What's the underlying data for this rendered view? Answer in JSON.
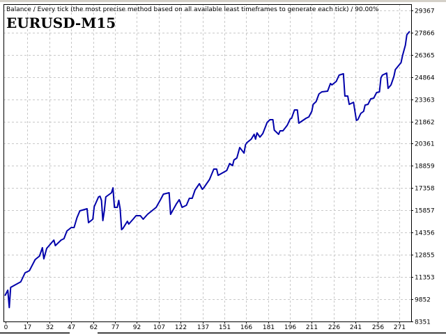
{
  "chart_data": {
    "type": "line",
    "subtitle": "Balance / Every tick (the most precise method based on all available least timeframes to generate each tick) / 90.00%",
    "title": "EURUSD-M15",
    "xlabel": "",
    "ylabel": "",
    "grid": true,
    "xlim": [
      -1,
      282
    ],
    "ylim": [
      8351,
      29783
    ],
    "x_ticks": [
      0,
      17,
      32,
      47,
      62,
      77,
      92,
      107,
      122,
      137,
      151,
      166,
      181,
      196,
      211,
      226,
      241,
      256,
      271
    ],
    "y_ticks": [
      29367,
      27866,
      26365,
      24864,
      23363,
      21862,
      20361,
      18859,
      17358,
      15857,
      14356,
      12855,
      11353,
      9852,
      8351
    ],
    "series": [
      {
        "name": "Balance",
        "color": "#0000aa",
        "x": [
          0,
          2,
          3,
          4,
          11,
          14,
          17,
          21,
          24,
          26,
          27,
          29,
          34,
          35,
          39,
          41,
          43,
          46,
          48,
          50,
          52,
          57,
          58,
          61,
          62,
          65,
          66,
          67,
          68,
          69,
          70,
          72,
          74,
          75,
          76,
          78,
          79,
          80,
          81,
          82,
          85,
          86,
          89,
          91,
          94,
          96,
          99,
          105,
          108,
          110,
          114,
          115,
          119,
          121,
          123,
          126,
          128,
          130,
          132,
          135,
          137,
          138,
          142,
          145,
          147,
          148,
          154,
          156,
          158,
          159,
          161,
          163,
          166,
          167,
          168,
          171,
          173,
          174,
          175,
          177,
          179,
          182,
          184,
          186,
          187,
          190,
          191,
          193,
          196,
          198,
          199,
          201,
          203,
          204,
          209,
          211,
          213,
          214,
          216,
          218,
          220,
          224,
          226,
          227,
          230,
          232,
          235,
          236,
          238,
          239,
          242,
          244,
          245,
          247,
          249,
          250,
          252,
          254,
          256,
          258,
          260,
          261,
          262,
          265,
          266,
          268,
          270,
          271,
          273,
          275,
          276,
          278,
          279,
          281
        ],
        "y": [
          10090,
          10466,
          9291,
          10654,
          11030,
          11641,
          11782,
          12534,
          12769,
          13333,
          12581,
          13286,
          13850,
          13474,
          13850,
          13944,
          14461,
          14696,
          14696,
          15354,
          15824,
          15965,
          15025,
          15260,
          16106,
          16764,
          16811,
          16529,
          15166,
          15824,
          16764,
          16905,
          17046,
          17375,
          16059,
          16059,
          16529,
          15965,
          14555,
          14649,
          15119,
          14931,
          15260,
          15495,
          15495,
          15260,
          15589,
          16059,
          16576,
          16952,
          17046,
          15589,
          16294,
          16576,
          16059,
          16200,
          16670,
          16670,
          17234,
          17657,
          17281,
          17375,
          17939,
          18644,
          18644,
          18221,
          18550,
          19020,
          18879,
          19255,
          19396,
          20101,
          19725,
          20289,
          20430,
          20665,
          20994,
          20665,
          21088,
          20806,
          21041,
          21793,
          21981,
          21981,
          21276,
          20994,
          21229,
          21229,
          21605,
          22028,
          22075,
          22639,
          22639,
          21746,
          22075,
          22169,
          22545,
          23015,
          23203,
          23720,
          23861,
          23908,
          24425,
          24331,
          24566,
          24989,
          25083,
          23579,
          23579,
          23015,
          23156,
          21934,
          21981,
          22404,
          22545,
          22968,
          23015,
          23391,
          23438,
          23814,
          23861,
          24801,
          24989,
          25130,
          24096,
          24331,
          24895,
          25365,
          25600,
          25835,
          26305,
          27010,
          27715,
          27950
        ]
      }
    ]
  }
}
